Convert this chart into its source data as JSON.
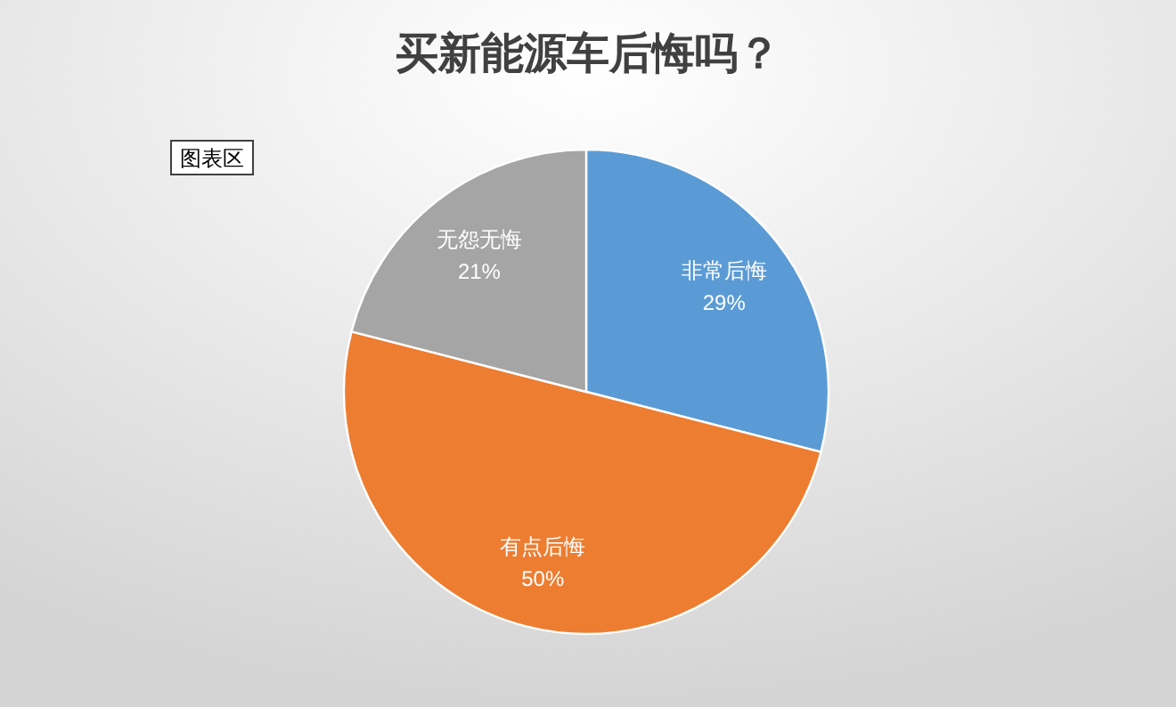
{
  "chart_data": {
    "type": "pie",
    "title": "买新能源车后悔吗？",
    "categories": [
      "非常后悔",
      "有点后悔",
      "无怨无悔"
    ],
    "values": [
      29,
      50,
      21
    ],
    "colors": [
      "#5b9bd5",
      "#ed7d31",
      "#a5a5a5"
    ],
    "value_labels": [
      "29%",
      "50%",
      "21%"
    ],
    "annotations": [
      "图表区"
    ]
  }
}
